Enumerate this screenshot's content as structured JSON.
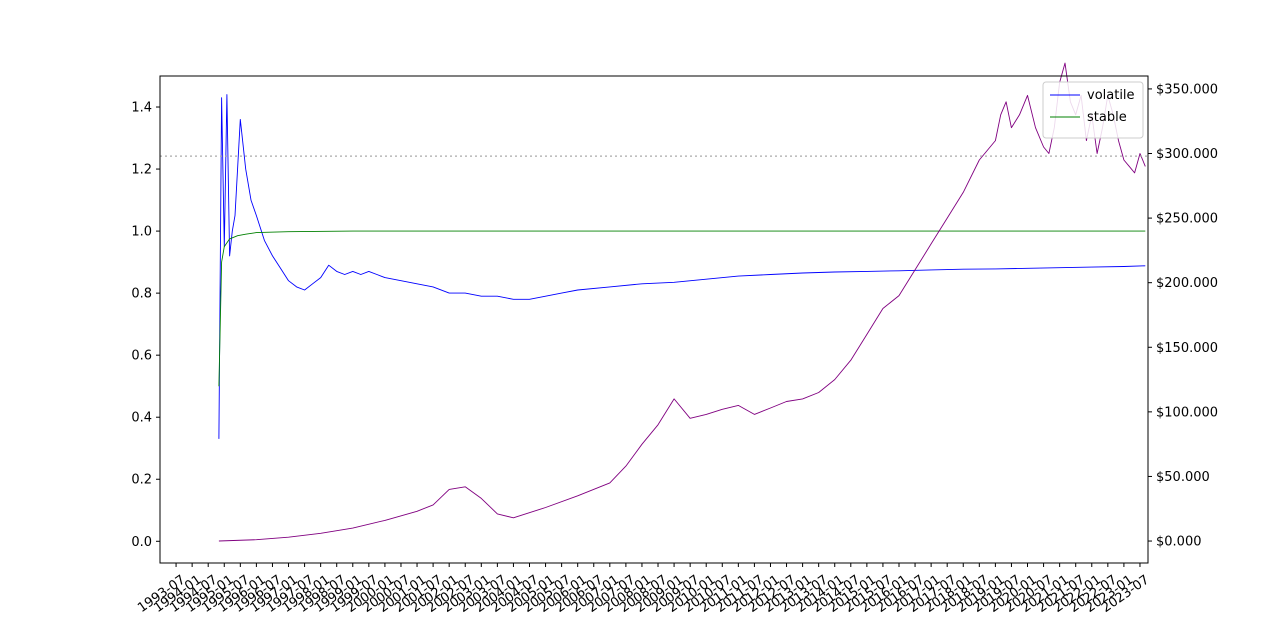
{
  "chart_data": {
    "type": "line",
    "title": "",
    "xlabel": "",
    "ylabel": "",
    "y2label": "",
    "x_range": [
      "1993-01",
      "2023-10"
    ],
    "x_ticks": [
      "1993-07",
      "1994-01",
      "1994-07",
      "1995-01",
      "1995-07",
      "1996-01",
      "1996-07",
      "1997-01",
      "1997-07",
      "1998-01",
      "1998-07",
      "1999-01",
      "1999-07",
      "2000-01",
      "2000-07",
      "2001-01",
      "2001-07",
      "2002-01",
      "2002-07",
      "2003-01",
      "2003-07",
      "2004-01",
      "2004-07",
      "2005-01",
      "2005-07",
      "2006-01",
      "2006-07",
      "2007-01",
      "2007-07",
      "2008-01",
      "2008-07",
      "2009-01",
      "2009-07",
      "2010-01",
      "2010-07",
      "2011-01",
      "2011-07",
      "2012-01",
      "2012-07",
      "2013-01",
      "2013-07",
      "2014-01",
      "2014-07",
      "2015-01",
      "2015-07",
      "2016-01",
      "2016-07",
      "2017-01",
      "2017-07",
      "2018-01",
      "2018-07",
      "2019-01",
      "2019-07",
      "2020-01",
      "2020-07",
      "2021-01",
      "2021-07",
      "2022-01",
      "2022-07",
      "2023-01",
      "2023-07"
    ],
    "y_left": {
      "ylim": [
        -0.07,
        1.5
      ],
      "ticks": [
        0.0,
        0.2,
        0.4,
        0.6,
        0.8,
        1.0,
        1.2,
        1.4
      ],
      "tick_labels": [
        "0.0",
        "0.2",
        "0.4",
        "0.6",
        "0.8",
        "1.0",
        "1.2",
        "1.4"
      ]
    },
    "y_right": {
      "ylim": [
        -17000,
        360000
      ],
      "ticks": [
        0,
        50000,
        100000,
        150000,
        200000,
        250000,
        300000,
        350000
      ],
      "tick_labels": [
        "$0.000",
        "$50.000",
        "$100.000",
        "$150.000",
        "$200.000",
        "$250.000",
        "$300.000",
        "$350.000"
      ]
    },
    "reference_line": {
      "axis": "right",
      "value": 298000,
      "style": "dotted",
      "color": "#aaaaaa"
    },
    "legend": {
      "position": "top-right",
      "entries": [
        "volatile",
        "stable"
      ]
    },
    "grid": false,
    "series": [
      {
        "name": "volatile",
        "axis": "left",
        "color": "#0000ff",
        "x": [
          "1994-11",
          "1994-12",
          "1995-01",
          "1995-02",
          "1995-03",
          "1995-04",
          "1995-05",
          "1995-07",
          "1995-09",
          "1995-11",
          "1996-01",
          "1996-04",
          "1996-07",
          "1996-10",
          "1997-01",
          "1997-04",
          "1997-07",
          "1997-10",
          "1998-01",
          "1998-04",
          "1998-07",
          "1998-10",
          "1999-01",
          "1999-04",
          "1999-07",
          "1999-10",
          "2000-01",
          "2000-07",
          "2001-01",
          "2001-07",
          "2002-01",
          "2002-07",
          "2003-01",
          "2003-07",
          "2004-01",
          "2004-07",
          "2005-01",
          "2005-07",
          "2006-01",
          "2007-01",
          "2008-01",
          "2009-01",
          "2010-01",
          "2011-01",
          "2012-01",
          "2013-01",
          "2014-01",
          "2015-01",
          "2016-01",
          "2017-01",
          "2018-01",
          "2019-01",
          "2020-01",
          "2021-01",
          "2022-01",
          "2023-01",
          "2023-09"
        ],
        "y": [
          0.33,
          1.43,
          0.95,
          1.44,
          0.92,
          1.0,
          1.05,
          1.36,
          1.2,
          1.1,
          1.05,
          0.97,
          0.92,
          0.88,
          0.84,
          0.82,
          0.81,
          0.83,
          0.85,
          0.89,
          0.87,
          0.86,
          0.87,
          0.86,
          0.87,
          0.86,
          0.85,
          0.84,
          0.83,
          0.82,
          0.8,
          0.8,
          0.79,
          0.79,
          0.78,
          0.78,
          0.79,
          0.8,
          0.81,
          0.82,
          0.83,
          0.835,
          0.845,
          0.855,
          0.86,
          0.865,
          0.868,
          0.87,
          0.872,
          0.875,
          0.877,
          0.878,
          0.88,
          0.882,
          0.884,
          0.886,
          0.888
        ]
      },
      {
        "name": "stable",
        "axis": "left",
        "color": "#008000",
        "x": [
          "1994-11",
          "1994-12",
          "1995-01",
          "1995-03",
          "1995-06",
          "1995-09",
          "1996-01",
          "1997-01",
          "1999-01",
          "2003-01",
          "2010-01",
          "2023-09"
        ],
        "y": [
          0.5,
          0.9,
          0.95,
          0.975,
          0.985,
          0.99,
          0.995,
          0.998,
          1.0,
          1.0,
          1.0,
          1.0
        ]
      },
      {
        "name": "",
        "axis": "right",
        "color": "#800080",
        "x": [
          "1994-11",
          "1996-01",
          "1997-01",
          "1998-01",
          "1999-01",
          "2000-01",
          "2001-01",
          "2001-07",
          "2002-01",
          "2002-07",
          "2003-01",
          "2003-07",
          "2004-01",
          "2005-01",
          "2006-01",
          "2007-01",
          "2007-07",
          "2008-01",
          "2008-07",
          "2009-01",
          "2009-07",
          "2010-01",
          "2010-07",
          "2011-01",
          "2011-07",
          "2012-01",
          "2012-07",
          "2013-01",
          "2013-07",
          "2014-01",
          "2014-07",
          "2015-01",
          "2015-07",
          "2016-01",
          "2016-07",
          "2017-01",
          "2017-07",
          "2018-01",
          "2018-07",
          "2019-01",
          "2019-03",
          "2019-05",
          "2019-07",
          "2019-10",
          "2020-01",
          "2020-04",
          "2020-07",
          "2020-09",
          "2020-11",
          "2021-01",
          "2021-03",
          "2021-05",
          "2021-07",
          "2021-09",
          "2021-11",
          "2022-01",
          "2022-03",
          "2022-05",
          "2022-07",
          "2022-09",
          "2022-11",
          "2023-01",
          "2023-03",
          "2023-05",
          "2023-07",
          "2023-09"
        ],
        "y": [
          0,
          1000,
          3000,
          6000,
          10000,
          16000,
          23000,
          28000,
          40000,
          42000,
          33000,
          21000,
          18000,
          26000,
          35000,
          45000,
          58000,
          75000,
          90000,
          110000,
          95000,
          98000,
          102000,
          105000,
          98000,
          103000,
          108000,
          110000,
          115000,
          125000,
          140000,
          160000,
          180000,
          190000,
          210000,
          230000,
          250000,
          270000,
          295000,
          310000,
          330000,
          340000,
          320000,
          330000,
          345000,
          320000,
          305000,
          300000,
          320000,
          355000,
          370000,
          340000,
          330000,
          345000,
          310000,
          330000,
          300000,
          320000,
          345000,
          330000,
          310000,
          295000,
          290000,
          285000,
          300000,
          290000
        ]
      }
    ]
  }
}
